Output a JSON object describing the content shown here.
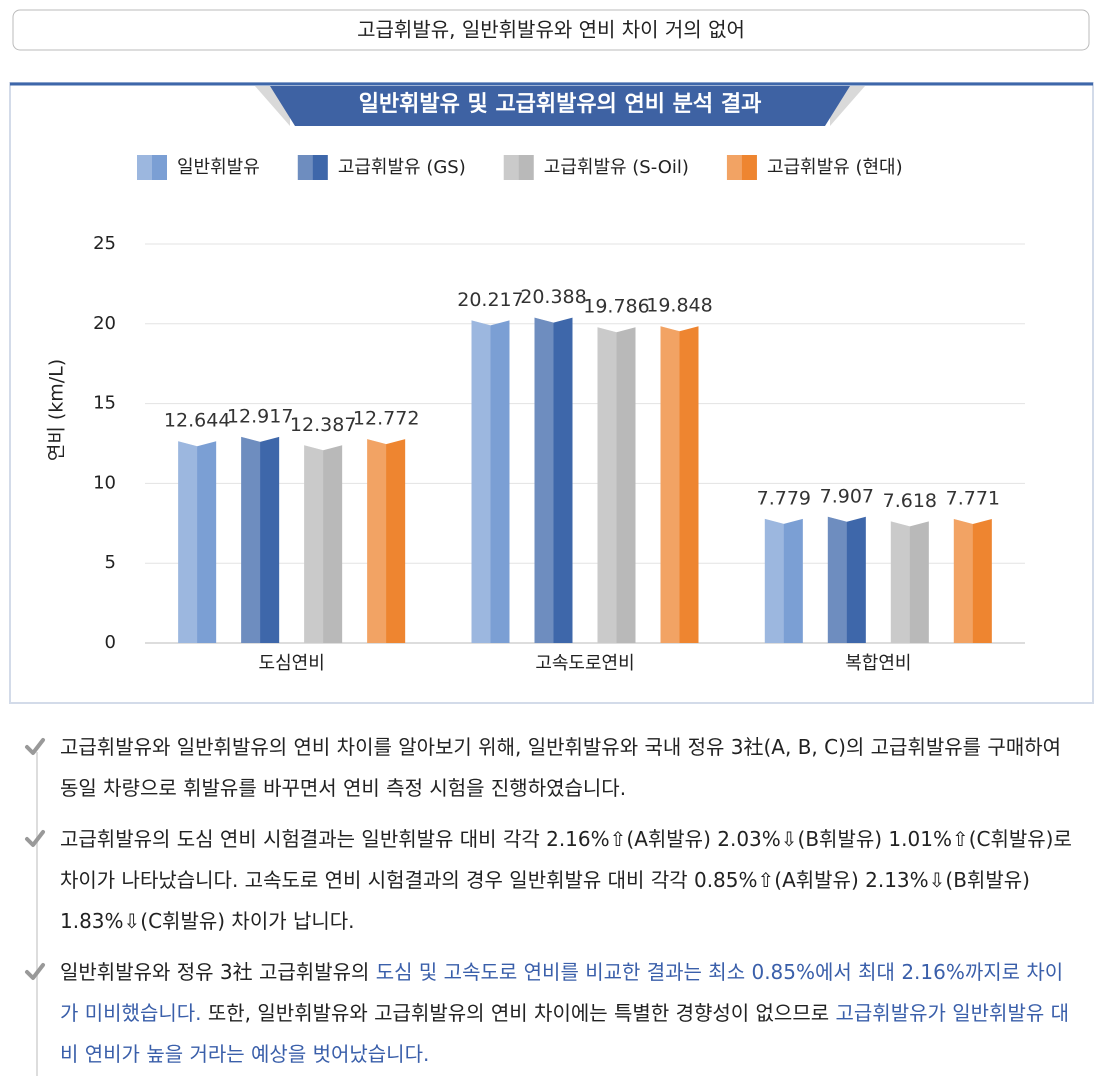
{
  "header": {
    "title": "고급휘발유, 일반휘발유와 연비 차이 거의 없어"
  },
  "chart_data": {
    "type": "bar",
    "title": "일반휘발유 및 고급휘발유의 연비 분석 결과",
    "ylabel": "연비 (km/L)",
    "categories": [
      "도심연비",
      "고속도로연비",
      "복합연비"
    ],
    "series": [
      {
        "name": "일반휘발유",
        "color": "#7b9fd4",
        "values": [
          12.644,
          20.217,
          7.779
        ]
      },
      {
        "name": "고급휘발유 (GS)",
        "color": "#3e67aa",
        "values": [
          12.917,
          20.388,
          7.907
        ]
      },
      {
        "name": "고급휘발유 (S-Oil)",
        "color": "#b9b9b9",
        "values": [
          12.387,
          19.786,
          7.618
        ]
      },
      {
        "name": "고급휘발유 (현대)",
        "color": "#ee8530",
        "values": [
          12.772,
          19.848,
          7.771
        ]
      }
    ],
    "ylim": [
      0,
      25
    ],
    "yticks": [
      0,
      5,
      10,
      15,
      20,
      25
    ],
    "grid": true,
    "legend": "top"
  },
  "bullets": [
    [
      {
        "text": "고급휘발유와 일반휘발유의 연비 차이를 알아보기 위해, 일반휘발유와 국내 정유 3社(A, B, C)의 고급휘발유를 구매하여 동일 차량으로 휘발유를 바꾸면서 연비 측정 시험을 진행하였습니다."
      }
    ],
    [
      {
        "text": "고급휘발유의 도심 연비 시험결과는 일반휘발유 대비 각각 2.16%⇧(A휘발유) 2.03%⇩(B휘발유) 1.01%⇧(C휘발유)로 차이가 나타났습니다. 고속도로 연비 시험결과의 경우 일반휘발유 대비 각각 0.85%⇧(A휘발유) 2.13%⇩(B휘발유) 1.83%⇩(C휘발유) 차이가 납니다."
      }
    ],
    [
      {
        "text": "일반휘발유와 정유 3社 고급휘발유의 "
      },
      {
        "text": "도심 및 고속도로 연비를 비교한 결과는 최소 0.85%에서 최대 2.16%까지로 차이가 미비했습니다.",
        "color": "#3a5faa"
      },
      {
        "text": " 또한, 일반휘발유와 고급휘발유의 연비 차이에는 특별한 경향성이 없으므로 "
      },
      {
        "text": "고급휘발유가 일반휘발유 대비 연비가 높을 거라는 예상을 벗어났습니다.",
        "color": "#3a5faa"
      }
    ]
  ]
}
